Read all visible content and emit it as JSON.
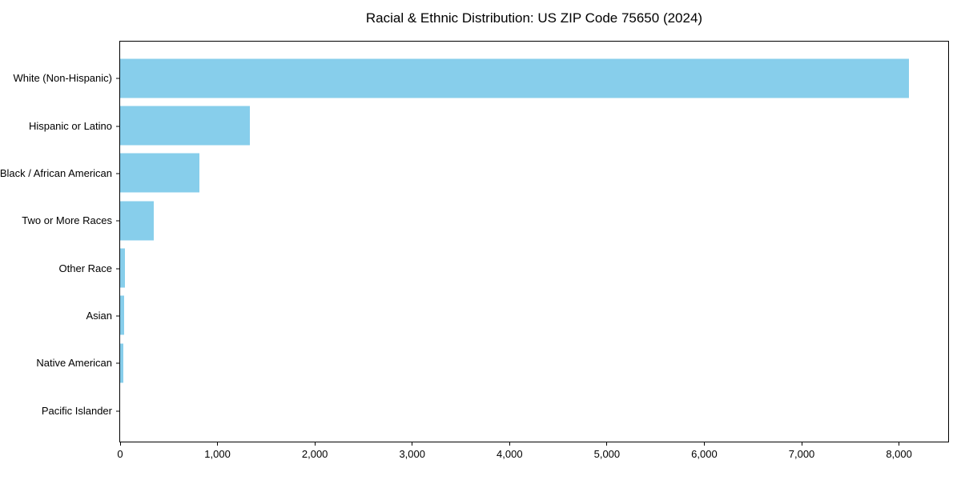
{
  "chart_data": {
    "type": "bar",
    "orientation": "horizontal",
    "title": "Racial & Ethnic Distribution: US ZIP Code 75650 (2024)",
    "categories": [
      "White (Non-Hispanic)",
      "Hispanic or Latino",
      "Black / African American",
      "Two or More Races",
      "Other Race",
      "Asian",
      "Native American",
      "Pacific Islander"
    ],
    "values": [
      8100,
      1330,
      815,
      345,
      50,
      40,
      33,
      0
    ],
    "xlabel": "",
    "ylabel": "",
    "xlim": [
      0,
      8505
    ],
    "x_tick_labels": [
      "0",
      "1,000",
      "2,000",
      "3,000",
      "4,000",
      "5,000",
      "6,000",
      "7,000",
      "8,000"
    ],
    "x_tick_values": [
      0,
      1000,
      2000,
      3000,
      4000,
      5000,
      6000,
      7000,
      8000
    ],
    "grid": false,
    "legend": "none",
    "bar_color": "#87CEEB"
  },
  "colors": {
    "bar": "#87CEEB",
    "axis": "#000000",
    "text": "#000000",
    "background": "#ffffff"
  }
}
